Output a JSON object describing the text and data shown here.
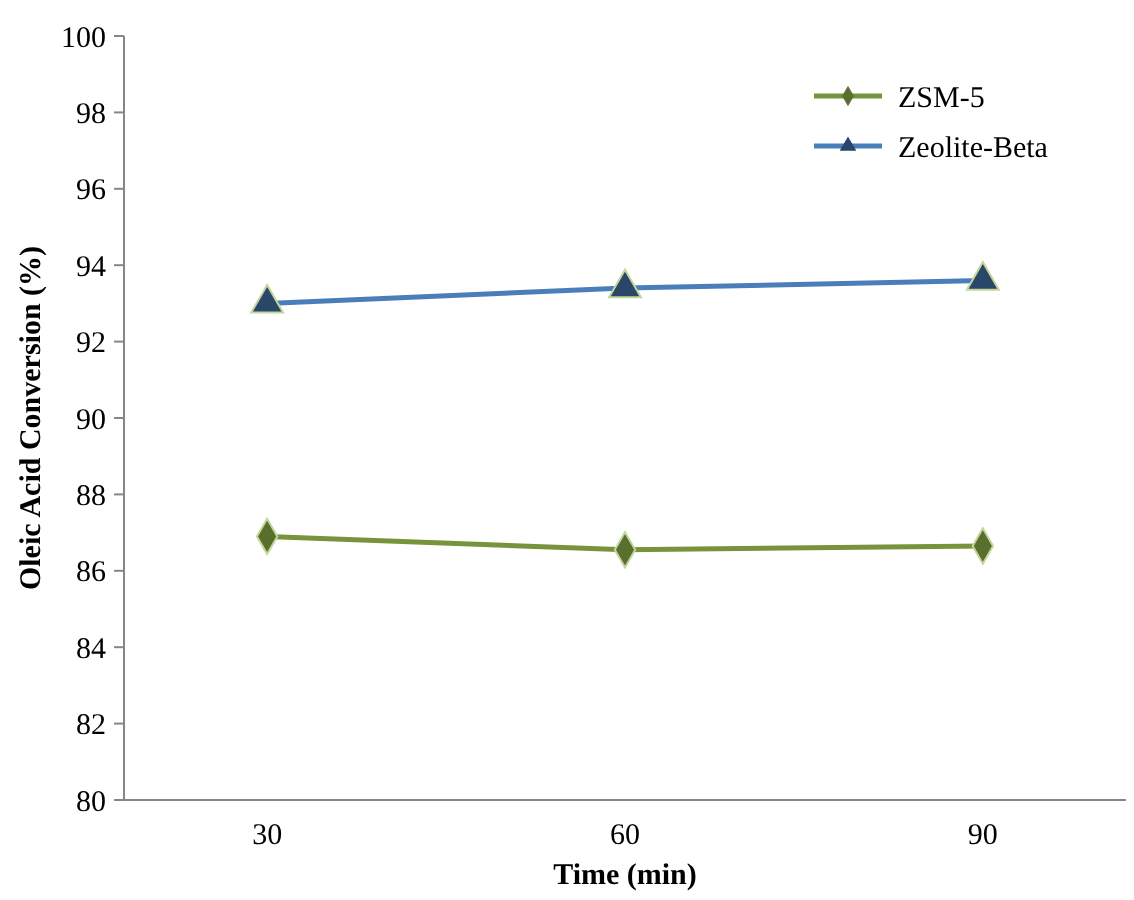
{
  "chart_data": {
    "type": "line",
    "xlabel": "Time (min)",
    "ylabel": "Oleic Acid Conversion (%)",
    "categories": [
      "30",
      "60",
      "90"
    ],
    "series": [
      {
        "name": "ZSM-5",
        "color": "#77933c",
        "marker": "diamond",
        "values": [
          86.9,
          86.55,
          86.65
        ]
      },
      {
        "name": "Zeolite-Beta",
        "color": "#4a7ebb",
        "marker": "triangle",
        "values": [
          93.0,
          93.4,
          93.6
        ]
      }
    ],
    "ylim": [
      80,
      100
    ],
    "yticks": [
      80,
      82,
      84,
      86,
      88,
      90,
      92,
      94,
      96,
      98,
      100
    ],
    "grid": false,
    "legend": "top right"
  }
}
